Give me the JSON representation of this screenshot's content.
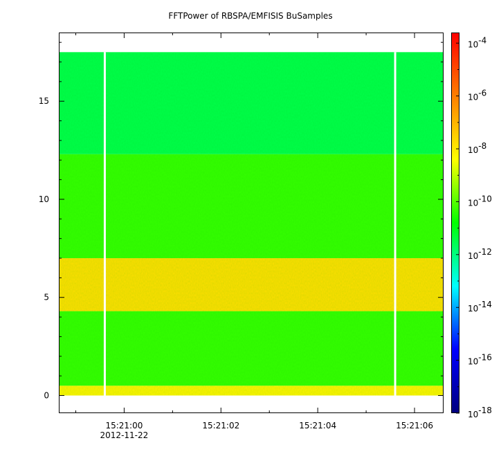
{
  "chart_data": {
    "type": "heatmap",
    "title": "FFTPower of RBSPA/EMFISIS  BuSamples",
    "xlabel": "",
    "ylabel": "",
    "x_ticks": [
      {
        "value": "15:21:00",
        "sublabel": "2012-11-22"
      },
      {
        "value": "15:21:02",
        "sublabel": ""
      },
      {
        "value": "15:21:04",
        "sublabel": ""
      },
      {
        "value": "15:21:06",
        "sublabel": ""
      }
    ],
    "x_range_seconds_after_15_21": [
      -1.35,
      6.6
    ],
    "ylim": [
      -0.9,
      18.5
    ],
    "y_ticks": [
      "0",
      "5",
      "10",
      "15"
    ],
    "data_y_range": [
      0,
      17.5
    ],
    "bands": [
      {
        "y_range": [
          0,
          0.5
        ],
        "log10_power": -8.2
      },
      {
        "y_range": [
          0.5,
          4.3
        ],
        "log10_power": -10.3
      },
      {
        "y_range": [
          4.3,
          7.0
        ],
        "log10_power": -7.8
      },
      {
        "y_range": [
          7.0,
          12.3
        ],
        "log10_power": -10.3
      },
      {
        "y_range": [
          12.3,
          17.5
        ],
        "log10_power": -11.5
      }
    ],
    "data_gaps_seconds_after_15_21": [
      -0.4,
      5.6
    ],
    "colorbar": {
      "scale": "log",
      "range_log10": [
        -18,
        -3.6
      ],
      "tick_base": "10",
      "tick_exponents": [
        "-4",
        "-6",
        "-8",
        "-10",
        "-12",
        "-14",
        "-16",
        "-18"
      ],
      "colors": [
        "#00007f",
        "#0000ff",
        "#00ffff",
        "#00ff00",
        "#ffff00",
        "#ff7f00",
        "#ff0000"
      ]
    }
  }
}
